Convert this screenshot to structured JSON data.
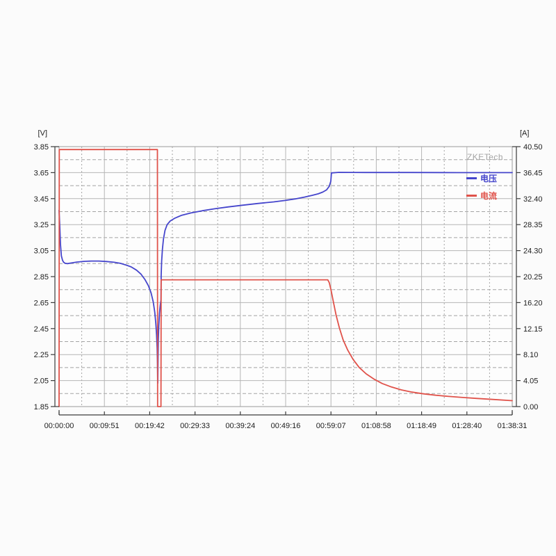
{
  "chart_data": {
    "type": "line",
    "watermark": "ZKETech",
    "colors": {
      "voltage": "#4545cc",
      "current": "#e0524a",
      "watermark": "#a5a5a5",
      "grid_major": "#b5b5b5",
      "grid_minor": "#a3a3a3",
      "frame": "#9a9a9a",
      "axis": "#3a3a3a",
      "text": "#1c1c1c",
      "plot_bg": "#fdfdfd"
    },
    "axes": {
      "left": {
        "unit": "[V]",
        "min": 1.85,
        "max": 3.85,
        "tick_labels": [
          "3.85",
          "3.65",
          "3.45",
          "3.25",
          "3.05",
          "2.85",
          "2.65",
          "2.45",
          "2.25",
          "2.05",
          "1.85"
        ]
      },
      "right": {
        "unit": "[A]",
        "min": 0.0,
        "max": 40.5,
        "tick_labels": [
          "40.50",
          "36.45",
          "32.40",
          "28.35",
          "24.30",
          "20.25",
          "16.20",
          "12.15",
          "8.10",
          "4.05",
          "0.00"
        ]
      },
      "x": {
        "min_seconds": 0,
        "max_seconds": 5911,
        "tick_labels": [
          "00:00:00",
          "00:09:51",
          "00:19:42",
          "00:29:33",
          "00:39:24",
          "00:49:16",
          "00:59:07",
          "01:08:58",
          "01:18:49",
          "01:28:40",
          "01:38:31"
        ]
      }
    },
    "grid": {
      "major": "solid",
      "minor": "dashed",
      "minor_per_major": 1
    },
    "legend_position": "top-right-inside",
    "series": [
      {
        "name": "电压",
        "axis": "left",
        "color": "#4545cc",
        "points": [
          [
            0,
            3.36
          ],
          [
            8,
            3.25
          ],
          [
            18,
            3.1
          ],
          [
            30,
            3.01
          ],
          [
            45,
            2.975
          ],
          [
            60,
            2.96
          ],
          [
            80,
            2.952
          ],
          [
            110,
            2.95
          ],
          [
            160,
            2.955
          ],
          [
            230,
            2.962
          ],
          [
            320,
            2.967
          ],
          [
            420,
            2.97
          ],
          [
            520,
            2.97
          ],
          [
            620,
            2.966
          ],
          [
            720,
            2.96
          ],
          [
            800,
            2.952
          ],
          [
            870,
            2.94
          ],
          [
            940,
            2.925
          ],
          [
            1010,
            2.9
          ],
          [
            1070,
            2.868
          ],
          [
            1120,
            2.828
          ],
          [
            1165,
            2.78
          ],
          [
            1200,
            2.725
          ],
          [
            1228,
            2.655
          ],
          [
            1248,
            2.575
          ],
          [
            1262,
            2.49
          ],
          [
            1272,
            2.4
          ],
          [
            1279,
            2.3
          ],
          [
            1284,
            2.18
          ],
          [
            1287,
            2.03
          ],
          [
            1291,
            2.22
          ],
          [
            1295,
            2.36
          ],
          [
            1301,
            2.47
          ],
          [
            1310,
            2.57
          ],
          [
            1320,
            2.63
          ],
          [
            1329,
            2.67
          ],
          [
            1332,
            2.86
          ],
          [
            1338,
            2.97
          ],
          [
            1348,
            3.06
          ],
          [
            1362,
            3.14
          ],
          [
            1382,
            3.205
          ],
          [
            1410,
            3.25
          ],
          [
            1450,
            3.278
          ],
          [
            1510,
            3.3
          ],
          [
            1600,
            3.322
          ],
          [
            1720,
            3.34
          ],
          [
            1870,
            3.357
          ],
          [
            2030,
            3.372
          ],
          [
            2200,
            3.386
          ],
          [
            2400,
            3.4
          ],
          [
            2600,
            3.413
          ],
          [
            2800,
            3.425
          ],
          [
            2950,
            3.436
          ],
          [
            3080,
            3.448
          ],
          [
            3200,
            3.462
          ],
          [
            3300,
            3.475
          ],
          [
            3380,
            3.487
          ],
          [
            3440,
            3.5
          ],
          [
            3490,
            3.518
          ],
          [
            3525,
            3.545
          ],
          [
            3545,
            3.585
          ],
          [
            3553,
            3.648
          ],
          [
            3650,
            3.652
          ],
          [
            4000,
            3.651
          ],
          [
            4600,
            3.651
          ],
          [
            5200,
            3.65
          ],
          [
            5911,
            3.65
          ]
        ]
      },
      {
        "name": "电流",
        "axis": "right",
        "color": "#e0524a",
        "points": [
          [
            0,
            0
          ],
          [
            3,
            40.05
          ],
          [
            1283,
            40.05
          ],
          [
            1286,
            0.0
          ],
          [
            1329,
            0.0
          ],
          [
            1332,
            19.75
          ],
          [
            2000,
            19.75
          ],
          [
            3505,
            19.75
          ],
          [
            3525,
            19.3
          ],
          [
            3550,
            18.0
          ],
          [
            3580,
            16.2
          ],
          [
            3615,
            14.2
          ],
          [
            3655,
            12.3
          ],
          [
            3705,
            10.4
          ],
          [
            3765,
            8.8
          ],
          [
            3835,
            7.35
          ],
          [
            3915,
            6.1
          ],
          [
            4005,
            5.1
          ],
          [
            4105,
            4.3
          ],
          [
            4215,
            3.6
          ],
          [
            4335,
            3.05
          ],
          [
            4465,
            2.6
          ],
          [
            4605,
            2.25
          ],
          [
            4755,
            1.98
          ],
          [
            4915,
            1.76
          ],
          [
            5085,
            1.58
          ],
          [
            5265,
            1.42
          ],
          [
            5455,
            1.27
          ],
          [
            5655,
            1.12
          ],
          [
            5911,
            0.92
          ]
        ]
      }
    ]
  }
}
